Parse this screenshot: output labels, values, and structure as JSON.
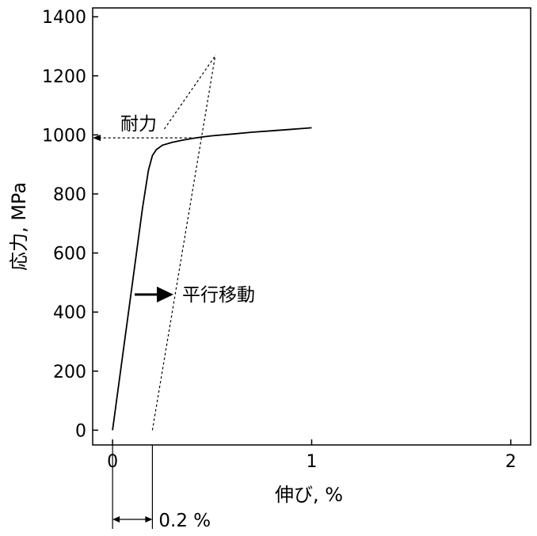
{
  "chart_data": {
    "type": "line",
    "xlabel": "伸び, %",
    "ylabel": "応力, MPa",
    "xlim": [
      -0.1,
      2.1
    ],
    "ylim": [
      -50,
      1430
    ],
    "x_ticks": [
      "0",
      "1",
      "2"
    ],
    "y_ticks": [
      "0",
      "200",
      "400",
      "600",
      "800",
      "1000",
      "1200",
      "1400"
    ],
    "grid": false,
    "series": [
      {
        "x": [
          0,
          0.05,
          0.1,
          0.15,
          0.18,
          0.2,
          0.22,
          0.25,
          0.3,
          0.35,
          0.4,
          0.45,
          0.5,
          0.6,
          0.7,
          0.8,
          0.9,
          1.0
        ],
        "values": [
          0,
          250,
          500,
          750,
          880,
          930,
          950,
          965,
          975,
          982,
          988,
          993,
          997,
          1003,
          1009,
          1014,
          1019,
          1024
        ]
      }
    ],
    "offset_lines": [
      {
        "x": [
          0.2,
          0.516
        ],
        "values": [
          0,
          1270
        ]
      },
      {
        "x": [
          0.26,
          0.518
        ],
        "values": [
          1020,
          1270
        ]
      }
    ],
    "annotations": {
      "proof_stress_label": "耐力",
      "proof_stress_value": 990,
      "parallel_shift_label": "平行移動",
      "offset_label": "0.2 %"
    }
  }
}
